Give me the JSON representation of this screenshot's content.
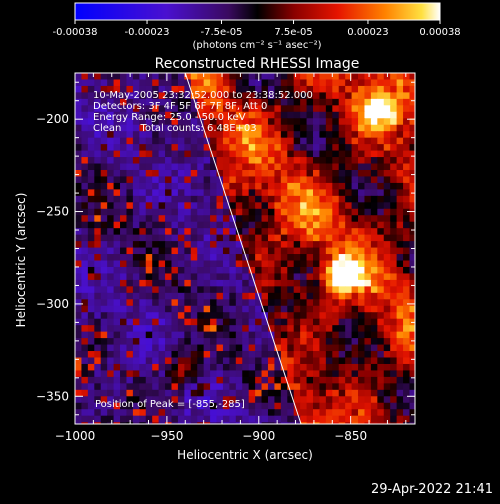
{
  "colorbar": {
    "tick_labels": [
      "-0.00038",
      "-0.00023",
      "-7.5e-05",
      "7.5e-05",
      "0.00023",
      "0.00038"
    ],
    "range": [
      -0.00038,
      0.00038
    ],
    "units_label": "(photons cm⁻² s⁻¹ asec⁻²)"
  },
  "chart_data": {
    "type": "heatmap",
    "title": "Reconstructed RHESSI Image",
    "xlabel": "Heliocentric X (arcsec)",
    "ylabel": "Heliocentric Y (arcsec)",
    "xlim": [
      -1000,
      -815
    ],
    "ylim": [
      -365,
      -175
    ],
    "x_ticks": [
      -1000,
      -950,
      -900,
      -850
    ],
    "y_ticks": [
      -200,
      -250,
      -300,
      -350
    ],
    "x_tick_labels": [
      "−1000",
      "−950",
      "−900",
      "−850"
    ],
    "y_tick_labels": [
      "−200",
      "−250",
      "−300",
      "−350"
    ],
    "info_lines": [
      "10-May-2005 23:32:52.000 to 23:38:52.000",
      "Detectors: 3F 4F 5F 6F 7F 8F, Att 0",
      "Energy Range: 25.0 - 50.0 keV",
      "Clean      Total counts: 6.48E+03"
    ],
    "peak_label": "Position of Peak = [-855,-285]",
    "peak_position": [
      -855,
      -285
    ],
    "limb_line": [
      [
        -940,
        -175
      ],
      [
        -877,
        -365
      ]
    ],
    "grid": false,
    "colormap": "blue-purple-black-red-orange-yellow-white (diverging)"
  },
  "footer": {
    "datestamp": "29-Apr-2022 21:41"
  }
}
